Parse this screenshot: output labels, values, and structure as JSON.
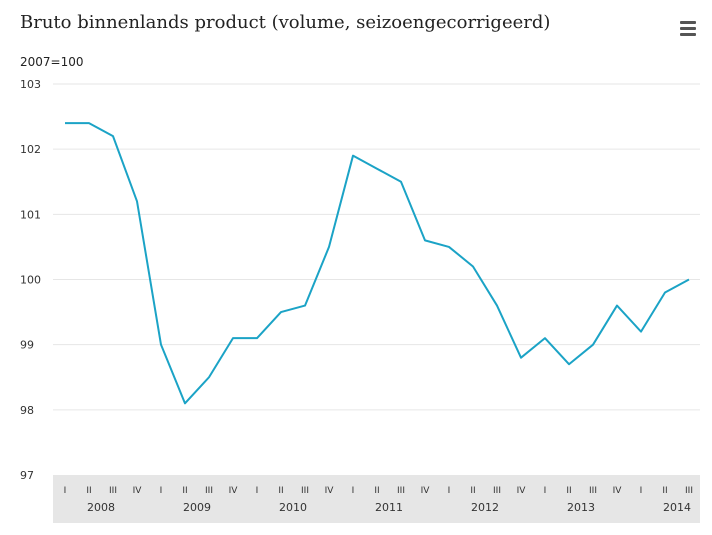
{
  "title": "Bruto binnenlands product (volume, seizoengecorrigeerd)",
  "unit_label": "2007=100",
  "menu_icon": "hamburger-menu-icon",
  "colors": {
    "line": "#1ba3c6",
    "grid": "#e6e6e6",
    "axis_band": "#e6e6e6",
    "text": "#333333"
  },
  "chart_data": {
    "type": "line",
    "title": "Bruto binnenlands product (volume, seizoengecorrigeerd)",
    "ylabel": "2007=100",
    "ylim": [
      97,
      103
    ],
    "yticks": [
      103,
      102,
      101,
      100,
      99,
      98,
      97
    ],
    "grid": true,
    "quarters": [
      "I",
      "II",
      "III",
      "IV",
      "I",
      "II",
      "III",
      "IV",
      "I",
      "II",
      "III",
      "IV",
      "I",
      "II",
      "III",
      "IV",
      "I",
      "II",
      "III",
      "IV",
      "I",
      "II",
      "III",
      "IV",
      "I",
      "II",
      "III"
    ],
    "years": [
      "2008",
      "2009",
      "2010",
      "2011",
      "2012",
      "2013",
      "2014"
    ],
    "series": [
      {
        "values": [
          102.4,
          102.4,
          102.2,
          101.2,
          99.0,
          98.1,
          98.5,
          99.1,
          99.1,
          99.5,
          99.6,
          100.5,
          101.9,
          101.7,
          101.5,
          100.6,
          100.5,
          100.2,
          99.6,
          98.8,
          99.1,
          98.7,
          99.0,
          99.6,
          99.2,
          99.8,
          100.0
        ]
      }
    ]
  }
}
